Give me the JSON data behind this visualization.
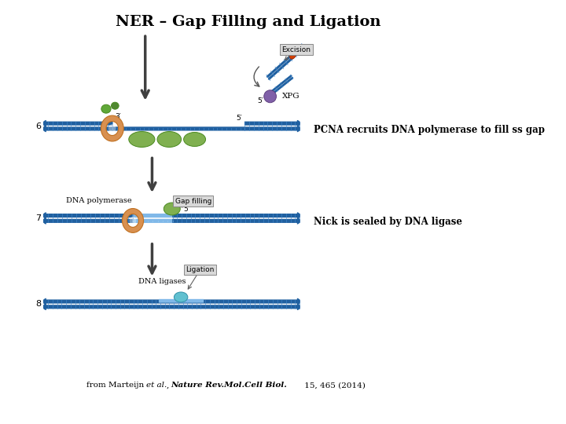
{
  "title": "NER – Gap Filling and Ligation",
  "title_fontsize": 14,
  "title_fontweight": "bold",
  "bg_color": "#ffffff",
  "annotation_right_1": "PCNA recruits DNA polymerase to fill ss gap",
  "annotation_right_2": "Nick is sealed by DNA ligase",
  "annotation_fontsize": 8.5,
  "label_6": "6",
  "label_7": "7",
  "label_8": "8",
  "label_excision": "Excision",
  "label_xpg": "XPG",
  "label_gap_filling": "Gap filling",
  "label_ligation": "Ligation",
  "label_dna_polymerase": "DNA polymerase",
  "label_dna_ligases": "DNA ligases",
  "label_3prime": "3′",
  "label_5prime": "5′",
  "citation_plain": "from Marteijn ",
  "citation_italic": "et al.",
  "citation_plain2": ", ",
  "citation_journal": "Nature Rev.Mol.Cell Biol.",
  "citation_end": " 15, 465 (2014)",
  "dna_blue": "#2060a0",
  "dna_light": "#4488cc",
  "dna_fill_light": "#80b8e8",
  "pcna_green": "#80b050",
  "pcna_green_dark": "#4a8a20",
  "ring_outer": "#d89050",
  "ring_inner": "#f0c080",
  "xpg_purple": "#8060a8",
  "ligase_cyan": "#60c0d0",
  "damage_orange": "#d04000",
  "arrow_dark": "#404040",
  "box_fill": "#d8d8d8",
  "box_edge": "#888888",
  "green_loader1": "#508830",
  "green_loader2": "#60a838"
}
